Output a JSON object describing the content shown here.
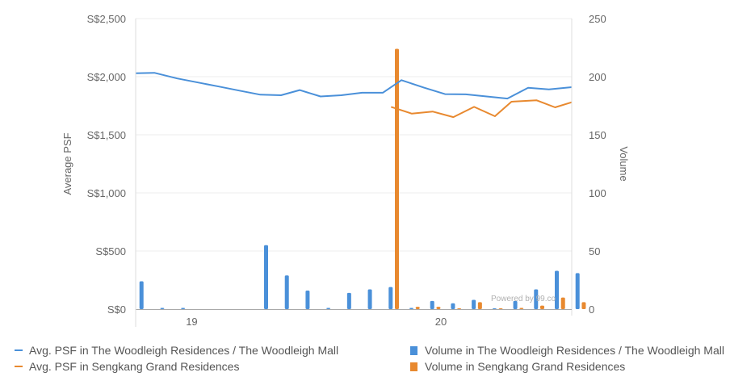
{
  "chart_data": {
    "type": "bar+line",
    "watermark": "Powered by 99.co",
    "y_left": {
      "label": "Average PSF",
      "range": [
        0,
        2500
      ],
      "ticks": [
        0,
        500,
        1000,
        1500,
        2000,
        2500
      ],
      "tick_labels": [
        "S$0",
        "S$500",
        "S$1,000",
        "S$1,500",
        "S$2,000",
        "S$2,500"
      ]
    },
    "y_right": {
      "label": "Volume",
      "range": [
        0,
        250
      ],
      "ticks": [
        0,
        50,
        100,
        150,
        200,
        250
      ],
      "tick_labels": [
        "0",
        "50",
        "100",
        "150",
        "200",
        "250"
      ]
    },
    "x_axis": {
      "labels": [
        {
          "text": "19",
          "at": 2.2
        },
        {
          "text": "20",
          "at": 14.2
        }
      ],
      "range": [
        -0.5,
        20.5
      ]
    },
    "grid": true,
    "legend_position": "bottom",
    "series": [
      {
        "name": "Avg. PSF in The Woodleigh Residences / The Woodleigh Mall",
        "kind": "line",
        "axis": "left",
        "color": "#4a90d9",
        "points": [
          [
            -0.5,
            2030
          ],
          [
            0.4,
            2033
          ],
          [
            1.5,
            1985
          ],
          [
            2.5,
            1950
          ],
          [
            3.5,
            1915
          ],
          [
            4.5,
            1880
          ],
          [
            5.5,
            1845
          ],
          [
            6.5,
            1840
          ],
          [
            7.4,
            1885
          ],
          [
            8.4,
            1830
          ],
          [
            9.4,
            1840
          ],
          [
            10.4,
            1862
          ],
          [
            11.4,
            1862
          ],
          [
            12.3,
            1970
          ],
          [
            13.4,
            1905
          ],
          [
            14.4,
            1850
          ],
          [
            15.4,
            1848
          ],
          [
            16.4,
            1830
          ],
          [
            17.4,
            1812
          ],
          [
            18.4,
            1905
          ],
          [
            19.4,
            1890
          ],
          [
            20.5,
            1910
          ]
        ]
      },
      {
        "name": "Avg. PSF in Sengkang Grand Residences",
        "kind": "line",
        "axis": "left",
        "color": "#e8892f",
        "points": [
          [
            11.8,
            1740
          ],
          [
            12.8,
            1682
          ],
          [
            13.8,
            1700
          ],
          [
            14.8,
            1652
          ],
          [
            15.8,
            1740
          ],
          [
            16.8,
            1660
          ],
          [
            17.6,
            1785
          ],
          [
            18.8,
            1797
          ],
          [
            19.7,
            1736
          ],
          [
            20.5,
            1780
          ]
        ]
      },
      {
        "name": "Volume in The Woodleigh Residences / The Woodleigh Mall",
        "kind": "bar",
        "axis": "right",
        "color": "#4a90d9",
        "offset": 0,
        "x": [
          -0.2,
          0.8,
          1.8,
          5.8,
          6.8,
          7.8,
          8.8,
          9.8,
          10.8,
          11.8,
          12.8,
          13.8,
          14.8,
          15.8,
          16.8,
          17.8,
          18.8,
          19.8,
          20.8
        ],
        "values": [
          24,
          1,
          1,
          55,
          29,
          16,
          1,
          14,
          17,
          19,
          1,
          7,
          5,
          8,
          0,
          7,
          17,
          33,
          31
        ]
      },
      {
        "name": "Volume in Sengkang Grand Residences",
        "kind": "bar",
        "axis": "right",
        "color": "#e8892f",
        "offset": 0.3,
        "x": [
          11.8,
          12.8,
          13.8,
          14.8,
          15.8,
          16.8,
          17.8,
          18.8,
          19.8,
          20.8
        ],
        "values": [
          224,
          2,
          2,
          0,
          6,
          0,
          1,
          3,
          10,
          6
        ]
      }
    ]
  }
}
